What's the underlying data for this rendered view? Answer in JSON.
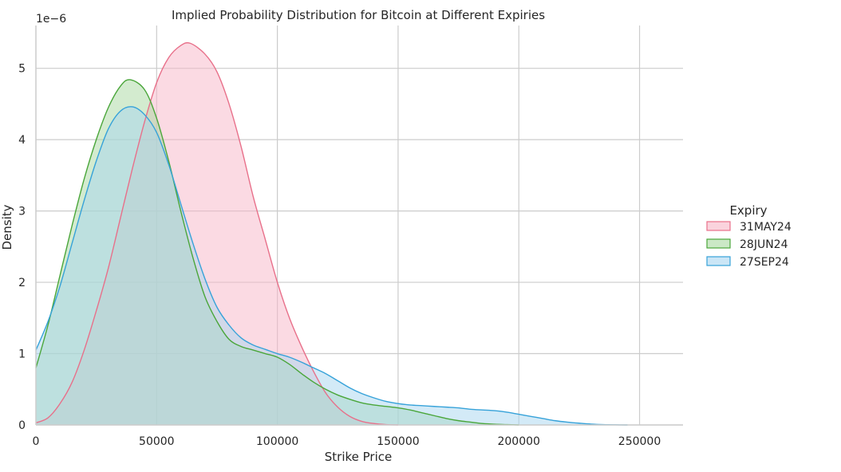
{
  "chart_data": {
    "type": "area",
    "title": "Implied Probability Distribution for Bitcoin at Different Expiries",
    "xlabel": "Strike Price",
    "ylabel": "Density",
    "y_scale_note": "1e−6",
    "xlim": [
      0,
      268000
    ],
    "ylim": [
      0,
      5.6
    ],
    "x_ticks": [
      0,
      50000,
      100000,
      150000,
      200000,
      250000
    ],
    "x_tick_labels": [
      "0",
      "50000",
      "100000",
      "150000",
      "200000",
      "250000"
    ],
    "y_ticks": [
      0,
      1,
      2,
      3,
      4,
      5
    ],
    "y_tick_labels": [
      "0",
      "1",
      "2",
      "3",
      "4",
      "5"
    ],
    "grid": true,
    "legend": {
      "title": "Expiry",
      "placement": "right"
    },
    "series": [
      {
        "name": "31MAY24",
        "line_color": "#e8708a",
        "fill_color": "#f7b6c7",
        "x": [
          0,
          5000,
          10000,
          15000,
          20000,
          25000,
          30000,
          35000,
          40000,
          45000,
          50000,
          55000,
          60000,
          64000,
          70000,
          75000,
          80000,
          85000,
          90000,
          95000,
          100000,
          105000,
          110000,
          115000,
          120000,
          125000,
          130000,
          135000,
          140000,
          145000,
          150000
        ],
        "values": [
          0.03,
          0.1,
          0.3,
          0.6,
          1.05,
          1.6,
          2.2,
          2.9,
          3.6,
          4.25,
          4.8,
          5.15,
          5.32,
          5.35,
          5.2,
          4.95,
          4.5,
          3.9,
          3.2,
          2.6,
          2.0,
          1.5,
          1.1,
          0.75,
          0.45,
          0.25,
          0.12,
          0.05,
          0.02,
          0.005,
          0.0
        ]
      },
      {
        "name": "28JUN24",
        "line_color": "#4aa63a",
        "fill_color": "#a8d8a0",
        "x": [
          0,
          5000,
          10000,
          15000,
          20000,
          25000,
          30000,
          35000,
          39000,
          45000,
          50000,
          55000,
          60000,
          65000,
          70000,
          75000,
          80000,
          85000,
          90000,
          95000,
          100000,
          105000,
          110000,
          115000,
          120000,
          125000,
          130000,
          135000,
          140000,
          145000,
          150000,
          155000,
          160000,
          165000,
          170000,
          175000,
          180000,
          185000,
          190000,
          195000,
          200000
        ],
        "values": [
          0.8,
          1.4,
          2.1,
          2.8,
          3.45,
          4.0,
          4.45,
          4.75,
          4.84,
          4.7,
          4.3,
          3.7,
          3.0,
          2.35,
          1.8,
          1.45,
          1.2,
          1.1,
          1.05,
          1.0,
          0.95,
          0.85,
          0.72,
          0.6,
          0.5,
          0.42,
          0.36,
          0.31,
          0.28,
          0.26,
          0.24,
          0.21,
          0.17,
          0.13,
          0.09,
          0.06,
          0.04,
          0.02,
          0.01,
          0.005,
          0.0
        ]
      },
      {
        "name": "27SEP24",
        "line_color": "#36a2d9",
        "fill_color": "#a8d6f0",
        "x": [
          0,
          5000,
          10000,
          15000,
          20000,
          25000,
          30000,
          35000,
          40000,
          45000,
          50000,
          55000,
          60000,
          65000,
          70000,
          75000,
          80000,
          85000,
          90000,
          95000,
          100000,
          105000,
          110000,
          115000,
          120000,
          125000,
          130000,
          135000,
          140000,
          145000,
          150000,
          155000,
          160000,
          165000,
          170000,
          175000,
          180000,
          185000,
          190000,
          195000,
          200000,
          205000,
          210000,
          215000,
          220000,
          225000,
          230000,
          235000,
          240000,
          245000
        ],
        "values": [
          1.05,
          1.45,
          1.95,
          2.55,
          3.15,
          3.7,
          4.15,
          4.4,
          4.46,
          4.35,
          4.1,
          3.65,
          3.1,
          2.55,
          2.05,
          1.65,
          1.4,
          1.22,
          1.12,
          1.06,
          1.0,
          0.95,
          0.88,
          0.8,
          0.72,
          0.62,
          0.52,
          0.44,
          0.38,
          0.33,
          0.3,
          0.28,
          0.27,
          0.26,
          0.25,
          0.24,
          0.22,
          0.21,
          0.2,
          0.18,
          0.15,
          0.12,
          0.09,
          0.06,
          0.04,
          0.025,
          0.012,
          0.005,
          0.002,
          0.0
        ]
      }
    ]
  }
}
